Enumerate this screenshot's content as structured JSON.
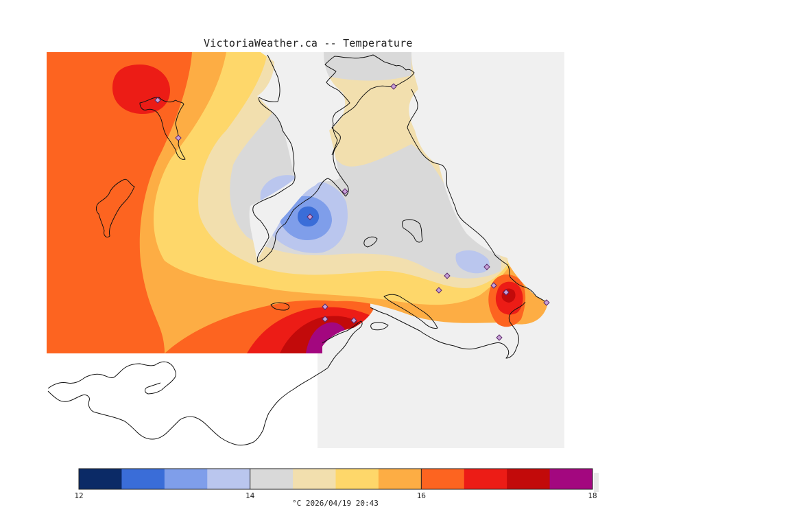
{
  "title": "VictoriaWeather.ca -- Temperature",
  "colorbar": {
    "bins": [
      {
        "from": 12.0,
        "to": 12.5,
        "color": "#0b2a66"
      },
      {
        "from": 12.5,
        "to": 13.0,
        "color": "#3a6dd8"
      },
      {
        "from": 13.0,
        "to": 13.5,
        "color": "#7f9eea"
      },
      {
        "from": 13.5,
        "to": 14.0,
        "color": "#bac6ee"
      },
      {
        "from": 14.0,
        "to": 14.5,
        "color": "#d9d9d9"
      },
      {
        "from": 14.5,
        "to": 15.0,
        "color": "#f2dfae"
      },
      {
        "from": 15.0,
        "to": 15.5,
        "color": "#fed76a"
      },
      {
        "from": 15.5,
        "to": 16.0,
        "color": "#fdad44"
      },
      {
        "from": 16.0,
        "to": 16.5,
        "color": "#fd6420"
      },
      {
        "from": 16.5,
        "to": 17.0,
        "color": "#ec1c16"
      },
      {
        "from": 17.0,
        "to": 17.5,
        "color": "#c20a0a"
      },
      {
        "from": 17.5,
        "to": 18.0,
        "color": "#a3077f"
      }
    ],
    "tick_labels": [
      "12",
      "14",
      "16",
      "18"
    ],
    "unit": "°C",
    "timestamp": "2026/04/19 20:43"
  },
  "caption": "°C  2026/04/19 20:43",
  "stations": [
    {
      "id": "s1"
    },
    {
      "id": "s2"
    },
    {
      "id": "s3"
    },
    {
      "id": "s4"
    },
    {
      "id": "s5"
    },
    {
      "id": "s6"
    },
    {
      "id": "s7"
    },
    {
      "id": "s8"
    },
    {
      "id": "s9"
    },
    {
      "id": "s10"
    },
    {
      "id": "s11"
    },
    {
      "id": "s12"
    },
    {
      "id": "s13"
    },
    {
      "id": "s14"
    },
    {
      "id": "s15"
    }
  ]
}
